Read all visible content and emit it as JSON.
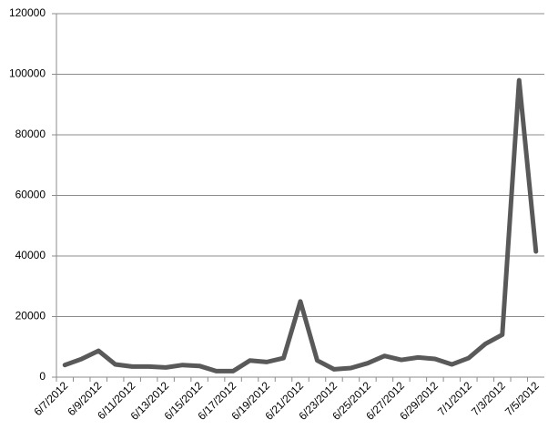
{
  "chart_data": {
    "type": "line",
    "categories": [
      "6/7/2012",
      null,
      "6/9/2012",
      null,
      "6/11/2012",
      null,
      "6/13/2012",
      null,
      "6/15/2012",
      null,
      "6/17/2012",
      null,
      "6/19/2012",
      null,
      "6/21/2012",
      null,
      "6/23/2012",
      null,
      "6/25/2012",
      null,
      "6/27/2012",
      null,
      "6/29/2012",
      null,
      "7/1/2012",
      null,
      "7/3/2012",
      null,
      "7/5/2012"
    ],
    "values": [
      4000,
      6000,
      8700,
      4200,
      3500,
      3500,
      3200,
      4000,
      3700,
      2000,
      2000,
      5500,
      5000,
      6300,
      25000,
      5500,
      2600,
      3000,
      4600,
      7000,
      5700,
      6500,
      6000,
      4200,
      6300,
      11000,
      14000,
      98000,
      41500
    ],
    "color": "#595959",
    "ylim": [
      0,
      120000
    ],
    "yticks": [
      0,
      20000,
      40000,
      60000,
      80000,
      100000,
      120000
    ],
    "grid": true
  }
}
